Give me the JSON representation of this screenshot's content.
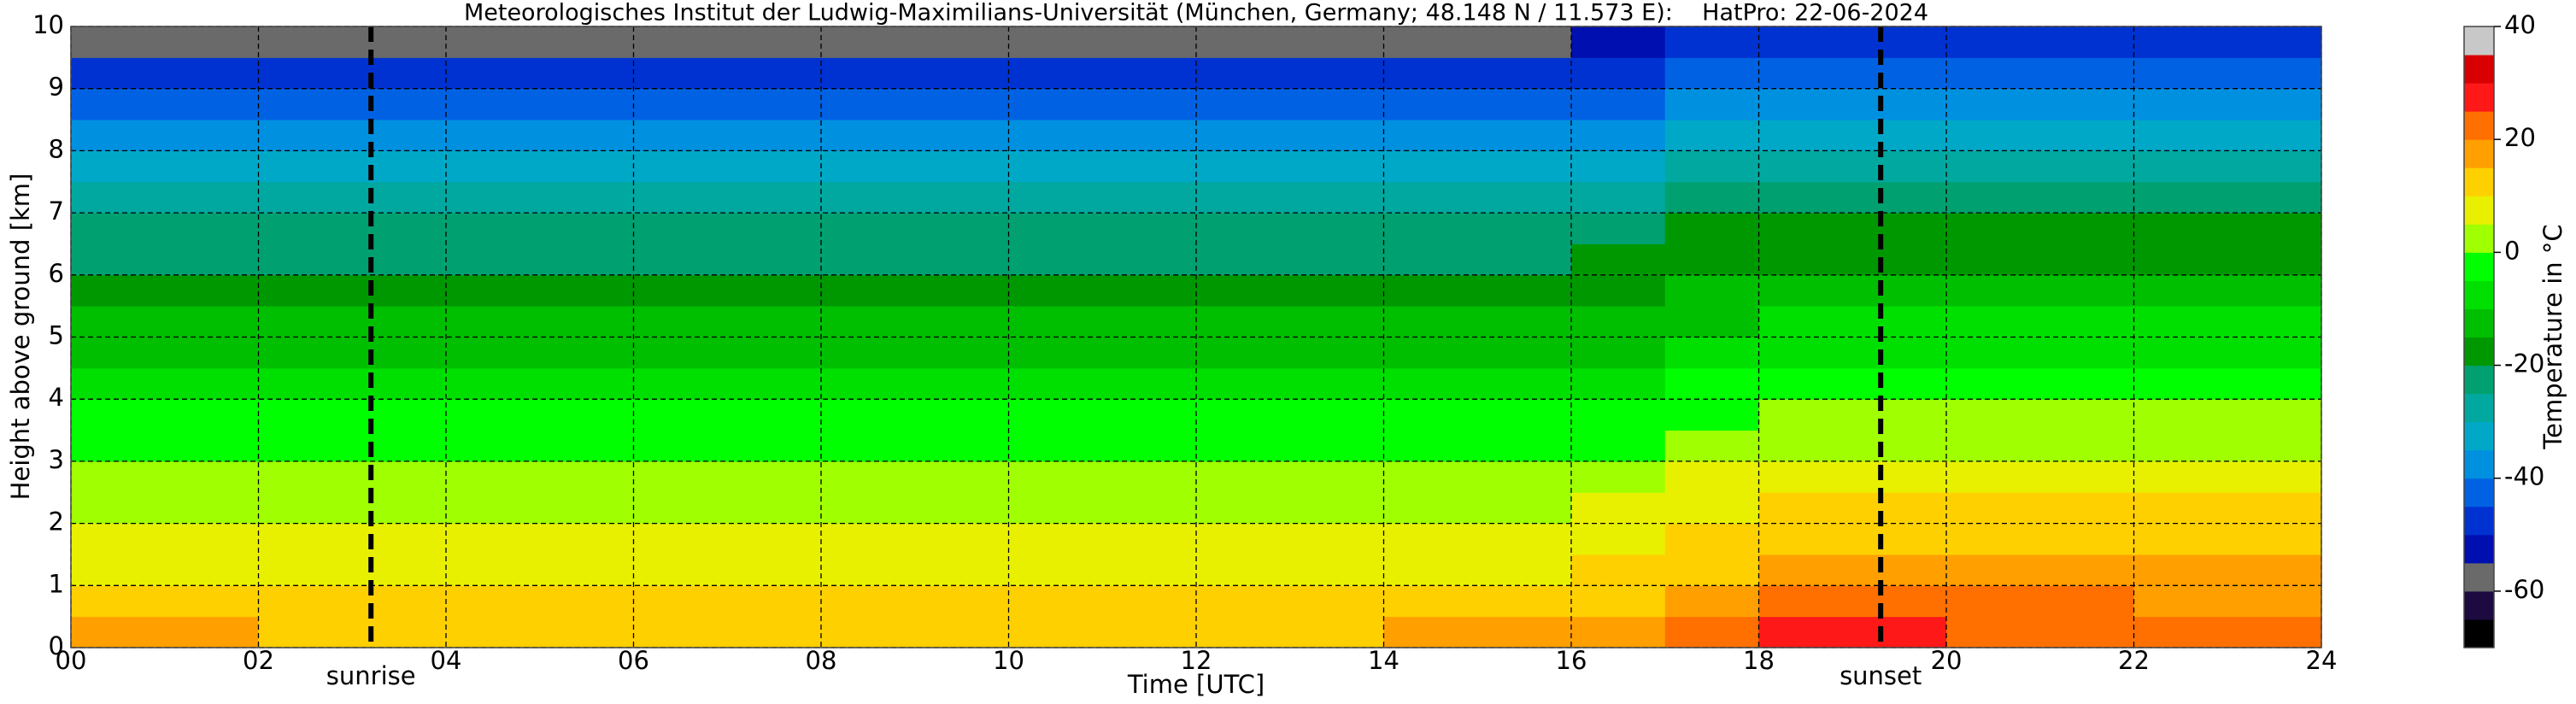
{
  "chart_data": {
    "type": "heatmap",
    "title": "Meteorologisches Institut der Ludwig-Maximilians-Universität (München, Germany; 48.148 N / 11.573 E):    HatPro: 22-06-2024",
    "x_label": "Time [UTC]",
    "y_label": "Height above ground [km]",
    "xlim": [
      0,
      24
    ],
    "ylim": [
      0,
      10
    ],
    "xticks": [
      {
        "value": 0,
        "label": "00"
      },
      {
        "value": 2,
        "label": "02"
      },
      {
        "value": 4,
        "label": "04"
      },
      {
        "value": 6,
        "label": "06"
      },
      {
        "value": 8,
        "label": "08"
      },
      {
        "value": 10,
        "label": "10"
      },
      {
        "value": 12,
        "label": "12"
      },
      {
        "value": 14,
        "label": "14"
      },
      {
        "value": 16,
        "label": "16"
      },
      {
        "value": 18,
        "label": "18"
      },
      {
        "value": 20,
        "label": "20"
      },
      {
        "value": 22,
        "label": "22"
      },
      {
        "value": 24,
        "label": "24"
      }
    ],
    "yticks": [
      0,
      1,
      2,
      3,
      4,
      5,
      6,
      7,
      8,
      9,
      10
    ],
    "grid": true,
    "xbins": [
      0,
      2,
      4,
      6,
      8,
      10,
      12,
      14,
      16,
      17,
      18,
      20,
      22,
      24
    ],
    "ybins": [
      0,
      0.5,
      1,
      1.5,
      2,
      2.5,
      3,
      3.5,
      4,
      4.5,
      5,
      5.5,
      6,
      6.5,
      7,
      7.5,
      8,
      8.5,
      9,
      9.5,
      10
    ],
    "values": [
      [
        15,
        14,
        14,
        14,
        14,
        14,
        14,
        15,
        16,
        22,
        25,
        24,
        23
      ],
      [
        11,
        11,
        11,
        11,
        11,
        11,
        11,
        11,
        12,
        18,
        20,
        20,
        19
      ],
      [
        9,
        9,
        9,
        9,
        9,
        9,
        9,
        9,
        10,
        14,
        16,
        16,
        16
      ],
      [
        7,
        7,
        7,
        7,
        7,
        7,
        7,
        7,
        8,
        11,
        13,
        13,
        13
      ],
      [
        4,
        4,
        4,
        4,
        4,
        4,
        4,
        4,
        5,
        8,
        10,
        10,
        10
      ],
      [
        1,
        1,
        1,
        1,
        1,
        1,
        1,
        1,
        2,
        5,
        7,
        7,
        7
      ],
      [
        -2,
        -2,
        -2,
        -2,
        -2,
        -2,
        -2,
        -2,
        -1,
        1,
        3,
        3,
        3
      ],
      [
        -5,
        -5,
        -5,
        -5,
        -5,
        -5,
        -5,
        -5,
        -4,
        -2,
        0,
        0,
        0
      ],
      [
        -9,
        -9,
        -9,
        -9,
        -9,
        -9,
        -9,
        -9,
        -8,
        -5,
        -3,
        -3,
        -3
      ],
      [
        -12,
        -12,
        -12,
        -12,
        -12,
        -12,
        -12,
        -12,
        -11,
        -8,
        -6,
        -6,
        -6
      ],
      [
        -15,
        -15,
        -15,
        -15,
        -15,
        -15,
        -15,
        -15,
        -14,
        -11,
        -9,
        -9,
        -9
      ],
      [
        -18,
        -18,
        -18,
        -18,
        -18,
        -18,
        -18,
        -18,
        -17,
        -14,
        -12,
        -12,
        -12
      ],
      [
        -21,
        -21,
        -21,
        -21,
        -21,
        -21,
        -21,
        -21,
        -20,
        -17,
        -16,
        -16,
        -16
      ],
      [
        -25,
        -25,
        -25,
        -25,
        -25,
        -25,
        -25,
        -25,
        -24,
        -20,
        -19,
        -19,
        -19
      ],
      [
        -29,
        -29,
        -29,
        -29,
        -29,
        -29,
        -29,
        -29,
        -28,
        -24,
        -23,
        -23,
        -23
      ],
      [
        -33,
        -33,
        -33,
        -33,
        -33,
        -33,
        -33,
        -33,
        -32,
        -28,
        -27,
        -27,
        -27
      ],
      [
        -37,
        -37,
        -37,
        -37,
        -37,
        -37,
        -37,
        -37,
        -36,
        -33,
        -32,
        -32,
        -32
      ],
      [
        -42,
        -42,
        -42,
        -42,
        -42,
        -42,
        -42,
        -42,
        -41,
        -38,
        -36,
        -36,
        -36
      ],
      [
        -50,
        -50,
        -50,
        -50,
        -50,
        -50,
        -50,
        -50,
        -49,
        -44,
        -42,
        -42,
        -42
      ],
      [
        -56,
        -56,
        -56,
        -56,
        -56,
        -56,
        -56,
        -56,
        -55,
        -50,
        -48,
        -48,
        -48
      ]
    ],
    "vlines": [
      {
        "x": 3.2,
        "label": "sunrise"
      },
      {
        "x": 19.3,
        "label": "sunset"
      }
    ],
    "colorbar": {
      "label": "Temperature in °C",
      "lim": [
        -70,
        40
      ],
      "ticks": [
        -60,
        -40,
        -20,
        0,
        20,
        40
      ],
      "colors": [
        "#000000",
        "#1c0a40",
        "#6a6a6a",
        "#0010b0",
        "#0032d2",
        "#0062e2",
        "#0090e0",
        "#00a8c8",
        "#00a8a0",
        "#00a070",
        "#009800",
        "#00bf00",
        "#00e000",
        "#00ff00",
        "#a0ff00",
        "#e8f000",
        "#ffd000",
        "#ffa000",
        "#ff7000",
        "#ff1818",
        "#d80000",
        "#c8c8c8"
      ]
    }
  }
}
